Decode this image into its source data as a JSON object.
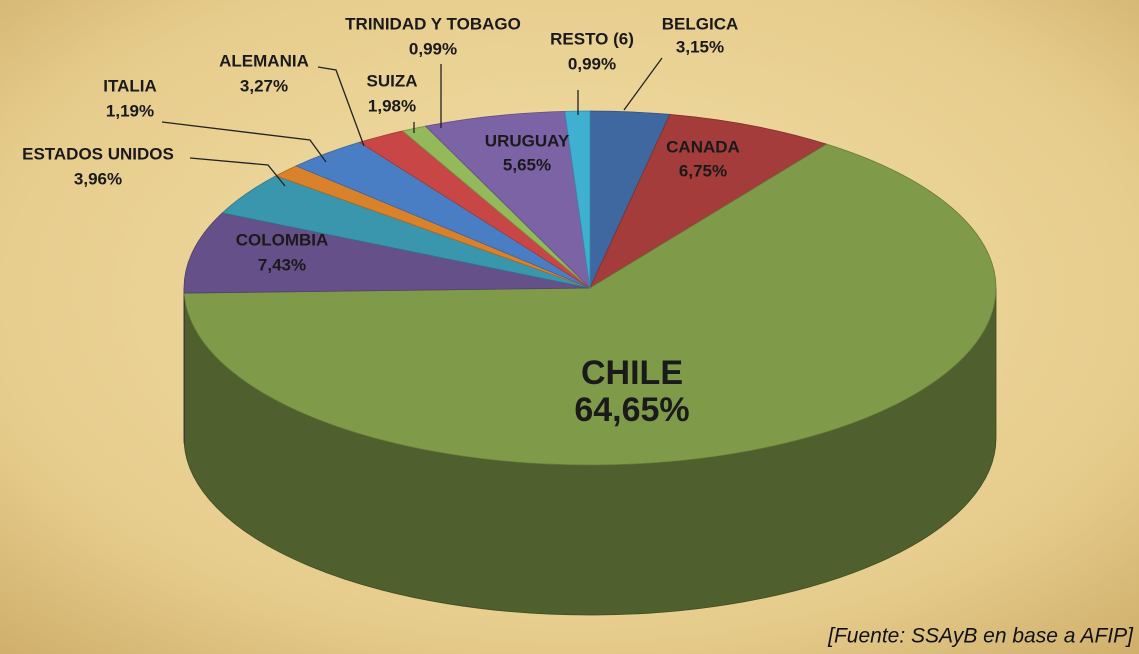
{
  "chart_data": {
    "type": "pie",
    "categories": [
      "BELGICA",
      "CANADA",
      "CHILE",
      "COLOMBIA",
      "ESTADOS UNIDOS",
      "ITALIA",
      "ALEMANIA",
      "SUIZA",
      "TRINIDAD Y TOBAGO",
      "URUGUAY",
      "RESTO (6)"
    ],
    "values": [
      3.15,
      6.75,
      64.65,
      7.43,
      3.96,
      1.19,
      3.27,
      1.98,
      0.99,
      5.65,
      0.99
    ],
    "value_labels": [
      "3,15%",
      "6,75%",
      "64,65%",
      "7,43%",
      "3,96%",
      "1,19%",
      "3,27%",
      "1,98%",
      "0,99%",
      "5,65%",
      "0,99%"
    ],
    "colors": [
      "#3f67a0",
      "#a33c3a",
      "#7f9a48",
      "#66508a",
      "#3a96ad",
      "#d9822b",
      "#4a7ec4",
      "#c84746",
      "#93b95a",
      "#7b63a6",
      "#3fb0cf"
    ],
    "source": "[Fuente: SSAyB en base a AFIP]"
  }
}
